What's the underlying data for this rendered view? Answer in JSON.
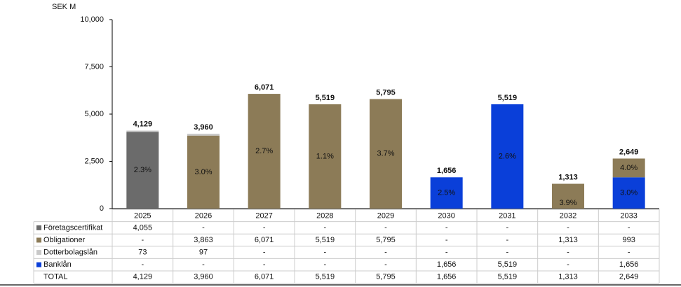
{
  "chart_data": {
    "type": "stacked-bar",
    "y_axis_label": "SEK M",
    "categories": [
      "2025",
      "2026",
      "2027",
      "2028",
      "2029",
      "2030",
      "2031",
      "2032",
      "2033"
    ],
    "ylim": [
      0,
      10000
    ],
    "yticks": [
      0,
      {
        "value": 2500,
        "label": "2,500"
      },
      {
        "value": 5000,
        "label": "5,000"
      },
      {
        "value": 7500,
        "label": "7,500"
      },
      {
        "value": 10000,
        "label": "10,000"
      }
    ],
    "grid": false,
    "series": [
      {
        "name": "Företagscertifikat",
        "color": "#6b6b6b",
        "values": [
          4055,
          null,
          null,
          null,
          null,
          null,
          null,
          null,
          null
        ],
        "value_labels": [
          "4,055",
          "-",
          "-",
          "-",
          "-",
          "-",
          "-",
          "-",
          "-"
        ],
        "rate_labels": [
          "2.3%",
          null,
          null,
          null,
          null,
          null,
          null,
          null,
          null
        ]
      },
      {
        "name": "Obligationer",
        "color": "#8c7b57",
        "values": [
          null,
          3863,
          6071,
          5519,
          5795,
          null,
          null,
          1313,
          993
        ],
        "value_labels": [
          "-",
          "3,863",
          "6,071",
          "5,519",
          "5,795",
          "-",
          "-",
          "1,313",
          "993"
        ],
        "rate_labels": [
          null,
          "3.0%",
          "2.7%",
          "1.1%",
          "3.7%",
          null,
          null,
          "3.9%",
          "4.0%"
        ]
      },
      {
        "name": "Dotterbolagslån",
        "color": "#c8c8c8",
        "values": [
          73,
          97,
          null,
          null,
          null,
          null,
          null,
          null,
          null
        ],
        "value_labels": [
          "73",
          "97",
          "-",
          "-",
          "-",
          "-",
          "-",
          "-",
          "-"
        ],
        "rate_labels": [
          null,
          null,
          null,
          null,
          null,
          null,
          null,
          null,
          null
        ]
      },
      {
        "name": "Banklån",
        "color": "#0a3fd9",
        "values": [
          null,
          null,
          null,
          null,
          null,
          1656,
          5519,
          null,
          1656
        ],
        "value_labels": [
          "-",
          "-",
          "-",
          "-",
          "-",
          "1,656",
          "5,519",
          "-",
          "1,656"
        ],
        "rate_labels": [
          null,
          null,
          null,
          null,
          null,
          "2.5%",
          "2.6%",
          null,
          "3.0%"
        ]
      }
    ],
    "total_name": "TOTAL",
    "totals": [
      4129,
      3960,
      6071,
      5519,
      5795,
      1656,
      5519,
      1313,
      2649
    ],
    "total_labels": [
      "4,129",
      "3,960",
      "6,071",
      "5,519",
      "5,795",
      "1,656",
      "5,519",
      "1,313",
      "2,649"
    ]
  }
}
